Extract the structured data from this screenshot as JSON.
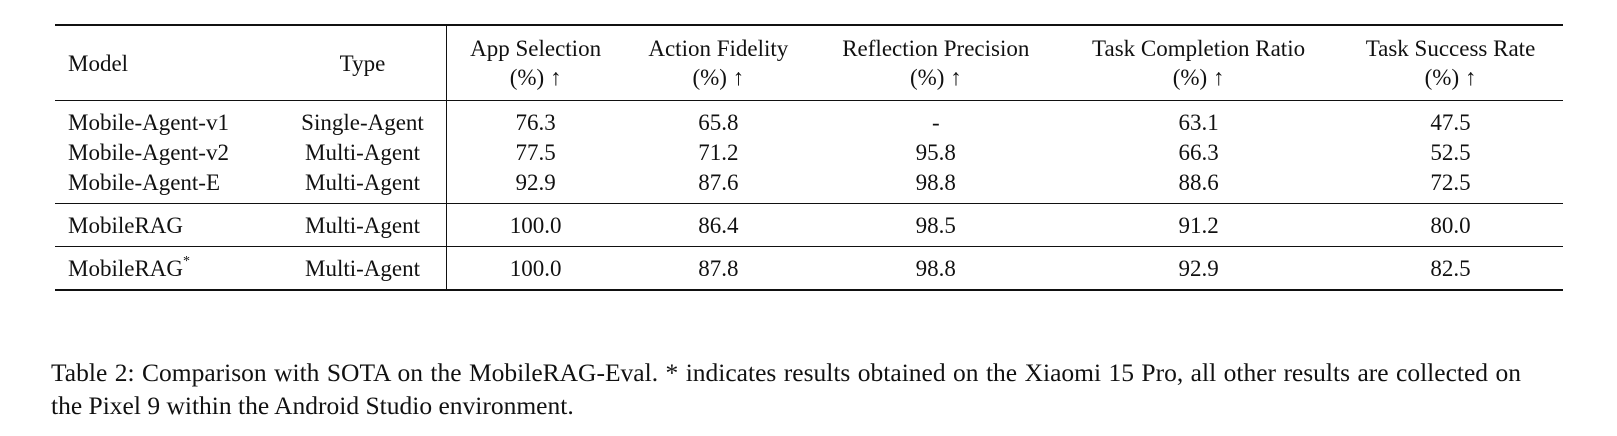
{
  "table": {
    "headers": {
      "model": "Model",
      "type": "Type",
      "app_selection": [
        "App Selection",
        "(%) ↑"
      ],
      "action_fidelity": [
        "Action Fidelity",
        "(%) ↑"
      ],
      "reflection_precision": [
        "Reflection Precision",
        "(%) ↑"
      ],
      "task_completion_ratio": [
        "Task Completion Ratio",
        "(%) ↑"
      ],
      "task_success_rate": [
        "Task Success Rate",
        "(%) ↑"
      ]
    },
    "groups": [
      [
        {
          "model": "Mobile-Agent-v1",
          "type": "Single-Agent",
          "app_selection": "76.3",
          "action_fidelity": "65.8",
          "reflection_precision": "-",
          "task_completion_ratio": "63.1",
          "task_success_rate": "47.5"
        },
        {
          "model": "Mobile-Agent-v2",
          "type": "Multi-Agent",
          "app_selection": "77.5",
          "action_fidelity": "71.2",
          "reflection_precision": "95.8",
          "task_completion_ratio": "66.3",
          "task_success_rate": "52.5"
        },
        {
          "model": "Mobile-Agent-E",
          "type": "Multi-Agent",
          "app_selection": "92.9",
          "action_fidelity": "87.6",
          "reflection_precision": "98.8",
          "task_completion_ratio": "88.6",
          "task_success_rate": "72.5"
        }
      ],
      [
        {
          "model": "MobileRAG",
          "model_sup": "",
          "type": "Multi-Agent",
          "app_selection": "100.0",
          "action_fidelity": "86.4",
          "reflection_precision": "98.5",
          "task_completion_ratio": "91.2",
          "task_success_rate": "80.0"
        }
      ],
      [
        {
          "model": "MobileRAG",
          "model_sup": "*",
          "type": "Multi-Agent",
          "app_selection": "100.0",
          "action_fidelity": "87.8",
          "reflection_precision": "98.8",
          "task_completion_ratio": "92.9",
          "task_success_rate": "82.5"
        }
      ]
    ]
  },
  "caption": "Table 2: Comparison with SOTA on the MobileRAG-Eval. * indicates results obtained on the Xiaomi 15 Pro, all other results are collected on the Pixel 9 within the Android Studio environment."
}
